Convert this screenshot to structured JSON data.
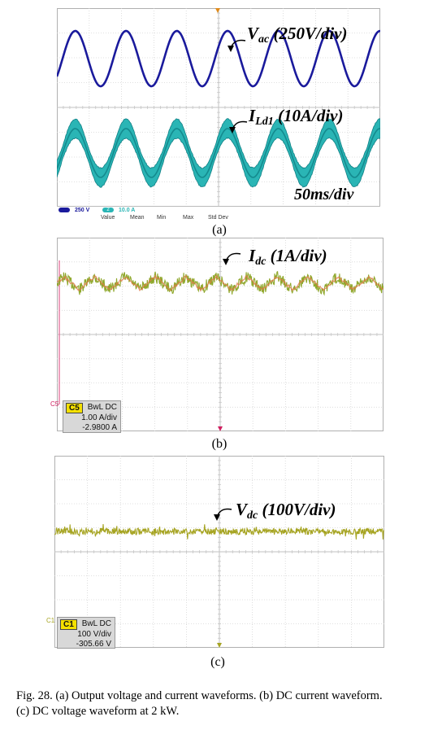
{
  "panels": [
    {
      "label": "(a)",
      "annotations": {
        "vac": {
          "main": "V",
          "sub": "ac",
          "unit": " (250V/div)"
        },
        "ild": {
          "main": "I",
          "sub": "Ld1",
          "unit": " (10A/div)"
        },
        "time": "50ms/div"
      },
      "status": {
        "ch1": "250 V",
        "ch2_num": "2",
        "ch2": "10.0 A",
        "stats": [
          "Value",
          "Mean",
          "Min",
          "Max",
          "Std Dev"
        ]
      },
      "colors": {
        "trace1": "#1a1a9c",
        "trace2": "#2ab5b5",
        "trace2_core": "#0f7f84"
      }
    },
    {
      "label": "(b)",
      "annotations": {
        "idc": {
          "main": "I",
          "sub": "dc",
          "unit": " (1A/div)"
        }
      },
      "badge": {
        "tag": "C5",
        "coupling": "BwL DC",
        "scale": "1.00 A/div",
        "offset": "-2.9800 A"
      },
      "marker": "C5",
      "colors": {
        "trace": "#8fa82c",
        "overlay": "#e07a4a"
      }
    },
    {
      "label": "(c)",
      "annotations": {
        "vdc": {
          "main": "V",
          "sub": "dc",
          "unit": " (100V/div)"
        }
      },
      "badge": {
        "tag": "C1",
        "coupling": "BwL DC",
        "scale": "100 V/div",
        "offset": "-305.66 V"
      },
      "marker": "C1",
      "colors": {
        "trace": "#a6a422"
      }
    }
  ],
  "caption": {
    "line1": "Fig. 28.   (a) Output voltage and current waveforms. (b) DC current waveform.",
    "line2": "(c) DC voltage waveform at 2 kW."
  }
}
